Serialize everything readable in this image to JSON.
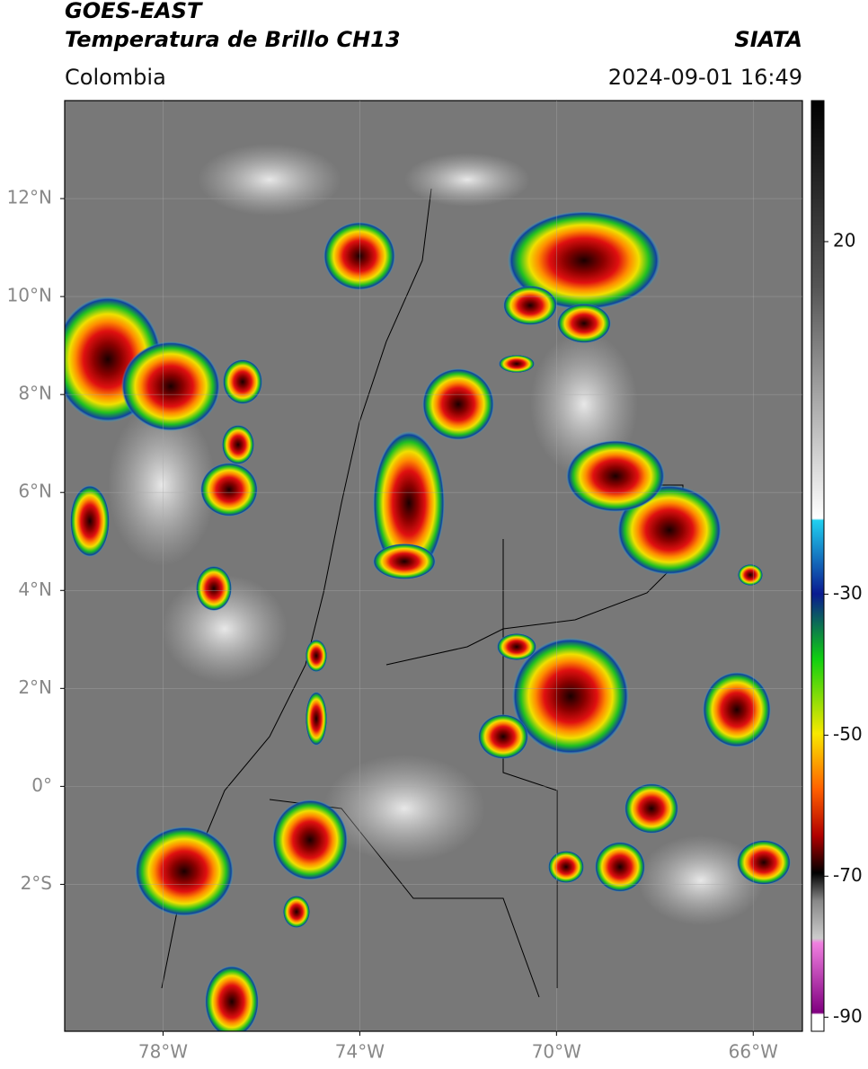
{
  "header": {
    "title": "GOES-EAST",
    "subtitle": "Temperatura de Brillo CH13",
    "source": "SIATA",
    "region": "Colombia",
    "timestamp": "2024-09-01 16:49"
  },
  "map": {
    "lonlim": [
      -80,
      -65
    ],
    "latlim": [
      -5,
      14
    ],
    "grid": true,
    "lonticks": [
      {
        "value": -78,
        "label": "78°W"
      },
      {
        "value": -74,
        "label": "74°W"
      },
      {
        "value": -70,
        "label": "70°W"
      },
      {
        "value": -66,
        "label": "66°W"
      }
    ],
    "latticks": [
      {
        "value": 12,
        "label": "12°N"
      },
      {
        "value": 10,
        "label": "10°N"
      },
      {
        "value": 8,
        "label": "8°N"
      },
      {
        "value": 6,
        "label": "6°N"
      },
      {
        "value": 4,
        "label": "4°N"
      },
      {
        "value": 2,
        "label": "2°N"
      },
      {
        "value": 0,
        "label": "0°"
      },
      {
        "value": -2,
        "label": "2°S"
      }
    ]
  },
  "colorbar": {
    "lim": [
      -92,
      40
    ],
    "ticks": [
      20,
      -30,
      -50,
      -70,
      -90
    ]
  }
}
